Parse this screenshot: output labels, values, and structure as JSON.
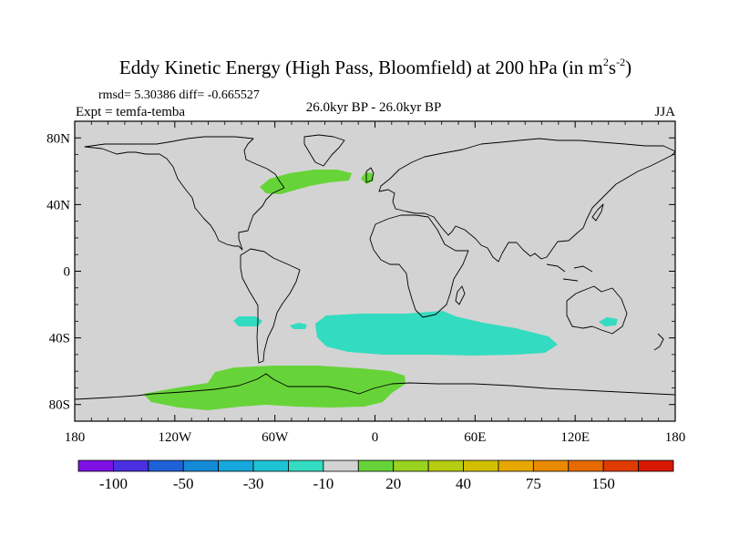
{
  "figure": {
    "title_main": "Eddy Kinetic Energy (High Pass, Bloomfield) at 200 hPa (in m",
    "title_unit_a": "2",
    "title_unit_mid": "s",
    "title_unit_b": "-2",
    "title_close": ")",
    "stats": "rmsd= 5.30386 diff= -0.665527",
    "expt": "Expt = temfa-temba",
    "period": "26.0kyr BP - 26.0kyr BP",
    "season": "JJA"
  },
  "map": {
    "projection": "cylindrical equidistant",
    "lon_range": [
      -180,
      180
    ],
    "lat_range": [
      -90,
      90
    ],
    "ocean_color": "#d3d3d3",
    "coast_color": "#000000",
    "x_ticks": [
      {
        "lon": -180,
        "label": "180"
      },
      {
        "lon": -120,
        "label": "120W"
      },
      {
        "lon": -60,
        "label": "60W"
      },
      {
        "lon": 0,
        "label": "0"
      },
      {
        "lon": 60,
        "label": "60E"
      },
      {
        "lon": 120,
        "label": "120E"
      },
      {
        "lon": 180,
        "label": "180"
      }
    ],
    "y_ticks": [
      {
        "lat": 80,
        "label": "80N"
      },
      {
        "lat": 40,
        "label": "40N"
      },
      {
        "lat": 0,
        "label": "0"
      },
      {
        "lat": -40,
        "label": "40S"
      },
      {
        "lat": -80,
        "label": "80S"
      }
    ],
    "anomaly_regions": [
      {
        "name": "north-atlantic-positive",
        "value_class": "20",
        "color": "#66d438"
      },
      {
        "name": "irish-sea-positive",
        "value_class": "20",
        "color": "#66d438"
      },
      {
        "name": "southern-ocean-negative",
        "value_class": "-10",
        "color": "#33dcc0"
      },
      {
        "name": "south-pacific-negative",
        "value_class": "-10",
        "color": "#33dcc0"
      },
      {
        "name": "south-atlantic-negative",
        "value_class": "-10",
        "color": "#33dcc0"
      },
      {
        "name": "australia-negative",
        "value_class": "-10",
        "color": "#33dcc0"
      },
      {
        "name": "antarctic-positive",
        "value_class": "20",
        "color": "#66d438"
      }
    ]
  },
  "colorbar": {
    "colors": [
      "#7f10e6",
      "#4a30e0",
      "#1e60d8",
      "#1489d6",
      "#16a8dc",
      "#1ec4d6",
      "#33dcc0",
      "#d3d3d3",
      "#66d438",
      "#9ad220",
      "#b6cc10",
      "#d2c000",
      "#e6a800",
      "#ea8a00",
      "#e66a00",
      "#e03c00",
      "#d81800"
    ],
    "labels": [
      {
        "boundary": 1,
        "text": "-100"
      },
      {
        "boundary": 3,
        "text": "-50"
      },
      {
        "boundary": 5,
        "text": "-30"
      },
      {
        "boundary": 7,
        "text": "-10"
      },
      {
        "boundary": 9,
        "text": "20"
      },
      {
        "boundary": 11,
        "text": "40"
      },
      {
        "boundary": 13,
        "text": "75"
      },
      {
        "boundary": 15,
        "text": "150"
      }
    ]
  }
}
